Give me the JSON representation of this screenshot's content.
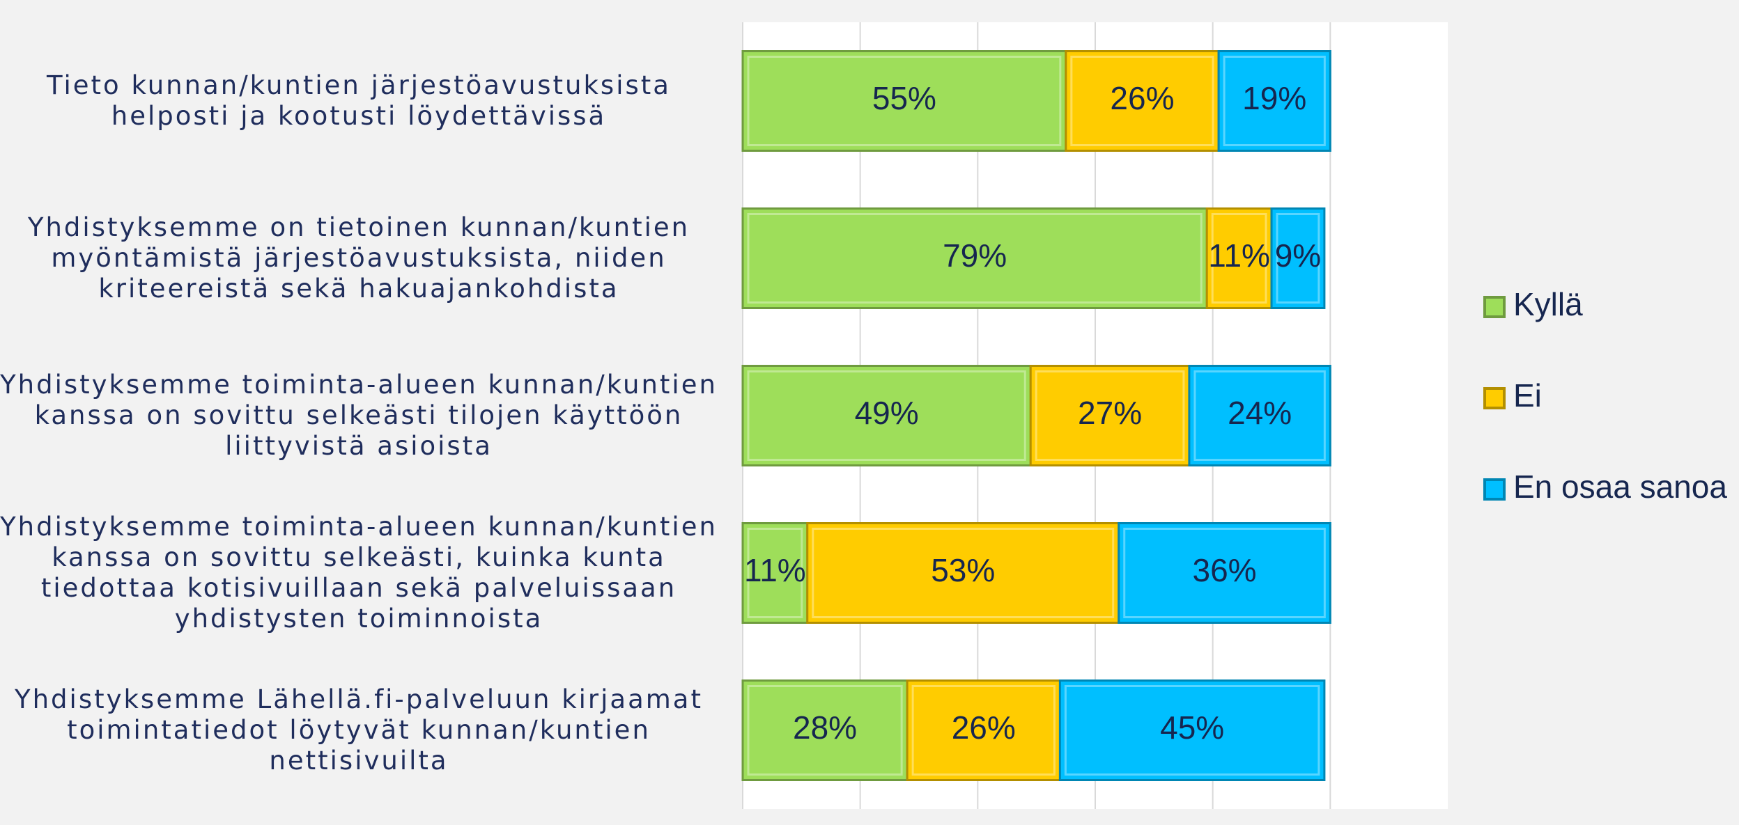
{
  "chart_data": {
    "type": "stacked-bar-horizontal",
    "categories": [
      "Tieto kunnan/kuntien järjestöavustuksista\nhelposti ja kootusti löydettävissä",
      "Yhdistyksemme on tietoinen kunnan/kuntien\nmyöntämistä järjestöavustuksista, niiden\nkriteereistä sekä hakuajankohdista",
      "Yhdistyksemme toiminta-alueen kunnan/kuntien\nkanssa on sovittu selkeästi tilojen käyttöön\nliittyvistä asioista",
      "Yhdistyksemme toiminta-alueen kunnan/kuntien\nkanssa on sovittu selkeästi, kuinka kunta\ntiedottaa kotisivuillaan sekä palveluissaan\nyhdistysten toiminnoista",
      "Yhdistyksemme Lähellä.fi-palveluun kirjaamat\ntoimintatiedot löytyvät kunnan/kuntien\nnettisivuilta"
    ],
    "series": [
      {
        "name": "Kyllä",
        "color": "#9ede5a",
        "values": [
          55,
          79,
          49,
          11,
          28
        ],
        "value_labels": [
          "55%",
          "79%",
          "49%",
          "11%",
          "28%"
        ]
      },
      {
        "name": "Ei",
        "color": "#ffcc00",
        "values": [
          26,
          11,
          27,
          53,
          26
        ],
        "value_labels": [
          "26%",
          "11%",
          "27%",
          "53%",
          "26%"
        ]
      },
      {
        "name": "En osaa sanoa",
        "color": "#00bfff",
        "values": [
          19,
          9,
          24,
          36,
          45
        ],
        "value_labels": [
          "19%",
          "9%",
          "24%",
          "36%",
          "45%"
        ]
      }
    ],
    "xlim": [
      0,
      120
    ],
    "xticks": [
      0,
      20,
      40,
      60,
      80,
      100
    ],
    "grid": true,
    "legend": "right"
  }
}
